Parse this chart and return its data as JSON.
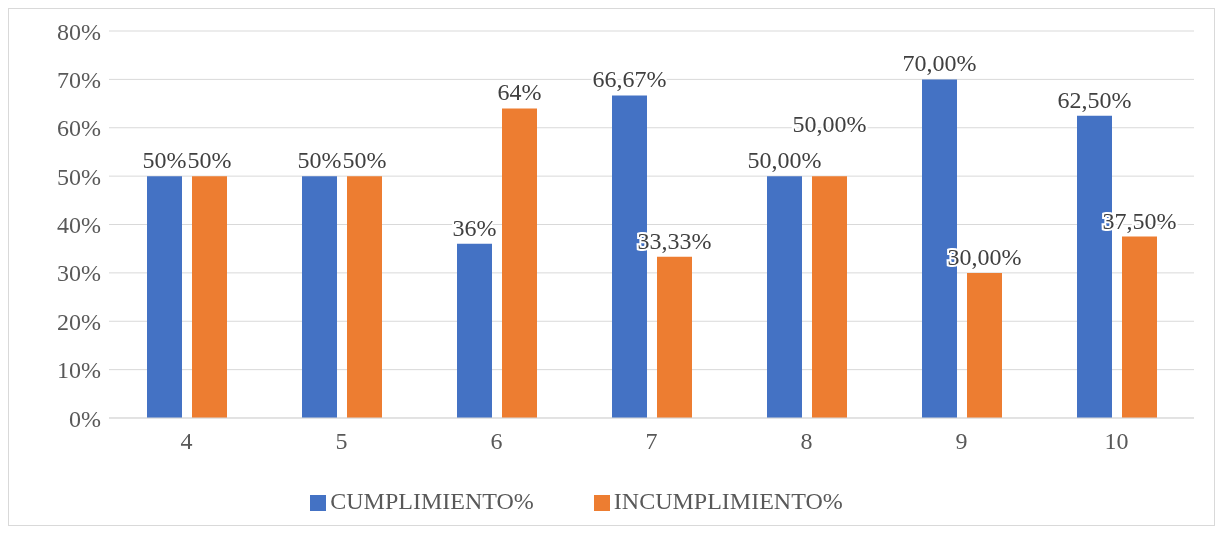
{
  "chart_data": {
    "type": "bar",
    "categories": [
      "4",
      "5",
      "6",
      "7",
      "8",
      "9",
      "10"
    ],
    "series": [
      {
        "name": "CUMPLIMIENTO%",
        "color": "#4472c4",
        "values": [
          50,
          50,
          36,
          66.67,
          50,
          70,
          62.5
        ],
        "value_labels": [
          "50%",
          "50%",
          "36%",
          "66,67%",
          "50,00%",
          "70,00%",
          "62,50%"
        ]
      },
      {
        "name": "INCUMPLIMIENTO%",
        "color": "#ed7d31",
        "values": [
          50,
          50,
          64,
          33.33,
          50,
          30,
          37.5
        ],
        "value_labels": [
          "50%",
          "50%",
          "64%",
          "33,33%",
          "50,00%",
          "30,00%",
          "37,50%"
        ]
      }
    ],
    "ylim": [
      0,
      80
    ],
    "yticks": [
      {
        "value": 0,
        "label": "0%"
      },
      {
        "value": 10,
        "label": "10%"
      },
      {
        "value": 20,
        "label": "20%"
      },
      {
        "value": 30,
        "label": "30%"
      },
      {
        "value": 40,
        "label": "40%"
      },
      {
        "value": 50,
        "label": "50%"
      },
      {
        "value": 60,
        "label": "60%"
      },
      {
        "value": 70,
        "label": "70%"
      },
      {
        "value": 80,
        "label": "80%"
      }
    ],
    "grid": "y",
    "legend": "bottom"
  }
}
